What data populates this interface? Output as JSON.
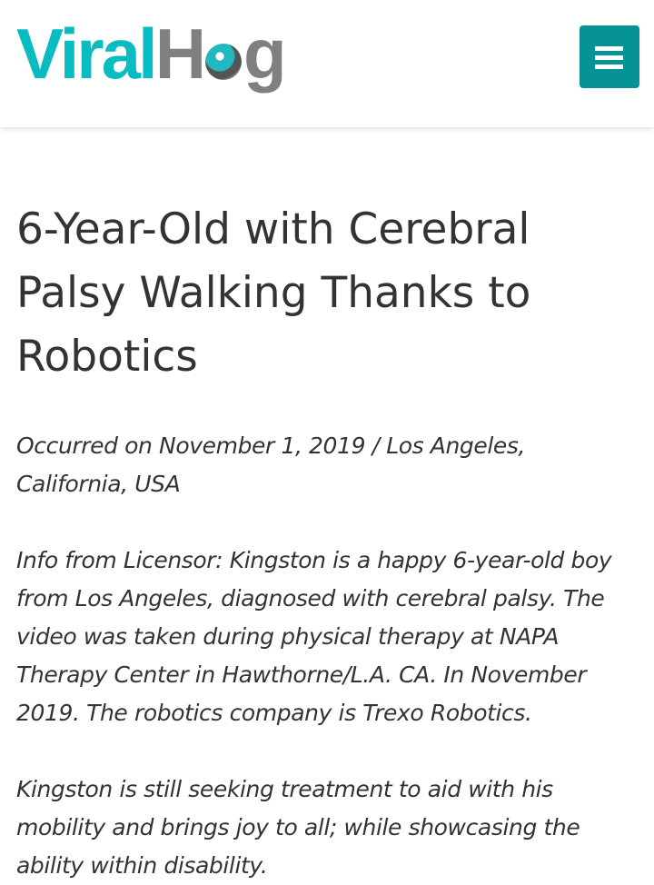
{
  "header": {
    "logo_text": "ViralHog",
    "logo_part1": "Viral",
    "logo_part2": "Hog",
    "menu_icon": "hamburger-icon",
    "brand_color": "#079295",
    "logo_teal": "#08bcc2",
    "logo_gray": "#808080"
  },
  "article": {
    "title": "6-Year-Old with Cerebral Palsy Walking Thanks to Robotics",
    "meta": "Occurred on November 1, 2019 / Los Angeles, California, USA",
    "paragraphs": [
      "Info from Licensor: Kingston is a happy 6-year-old boy from Los Angeles, diagnosed with cerebral palsy. The video was taken during physical therapy at NAPA Therapy Center in Hawthorne/L.A. CA. In November 2019. The robotics company is Trexo Robotics.",
      "Kingston is still seeking treatment to aid with his mobility and brings joy to all; while showcasing the ability within disability."
    ]
  }
}
